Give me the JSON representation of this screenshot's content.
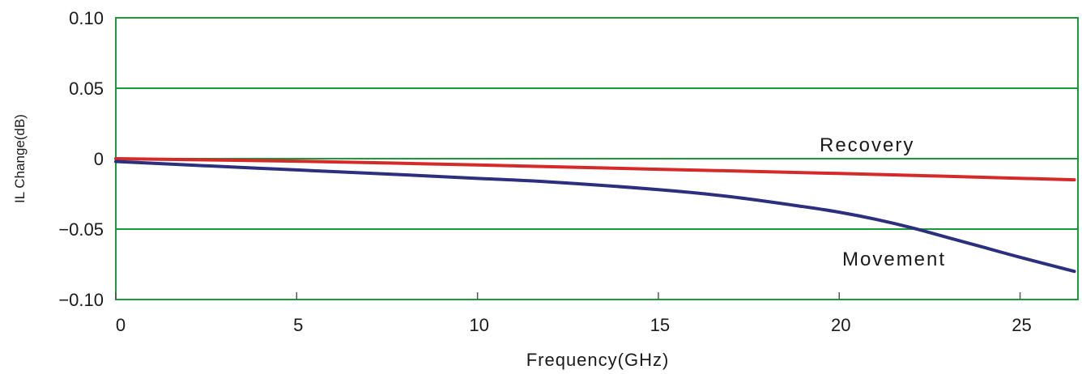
{
  "chart_data": {
    "type": "line",
    "xlabel": "Frequency(GHz)",
    "ylabel": "IL Change(dB)",
    "xlim": [
      0,
      26.6
    ],
    "ylim": [
      -0.1,
      0.1
    ],
    "x_ticks": [
      0,
      5,
      10,
      15,
      20,
      25
    ],
    "x_tick_labels": [
      "0",
      "5",
      "10",
      "15",
      "20",
      "25"
    ],
    "y_ticks": [
      0.1,
      0.05,
      0,
      -0.05,
      -0.1
    ],
    "y_tick_labels": [
      "0.10",
      "0.05",
      "0",
      "−0.05",
      "−0.10"
    ],
    "grid": "horizontal",
    "series": [
      {
        "name": "Recovery",
        "color": "#d42a2a",
        "x": [
          0,
          5,
          10,
          15,
          20,
          26.5
        ],
        "values": [
          0,
          -0.0018,
          -0.0045,
          -0.0075,
          -0.0105,
          -0.015
        ]
      },
      {
        "name": "Movement",
        "color": "#2c2f7d",
        "x": [
          0,
          2,
          5,
          8,
          10,
          12,
          15,
          17,
          19,
          20,
          21,
          22,
          23,
          24,
          25,
          26.5
        ],
        "values": [
          -0.002,
          -0.0045,
          -0.008,
          -0.0115,
          -0.014,
          -0.0165,
          -0.022,
          -0.027,
          -0.034,
          -0.038,
          -0.043,
          -0.049,
          -0.056,
          -0.063,
          -0.07,
          -0.08
        ]
      }
    ]
  },
  "colors": {
    "grid": "#1a9a3a",
    "frame": "#1a9a3a",
    "tick": "#555555"
  }
}
